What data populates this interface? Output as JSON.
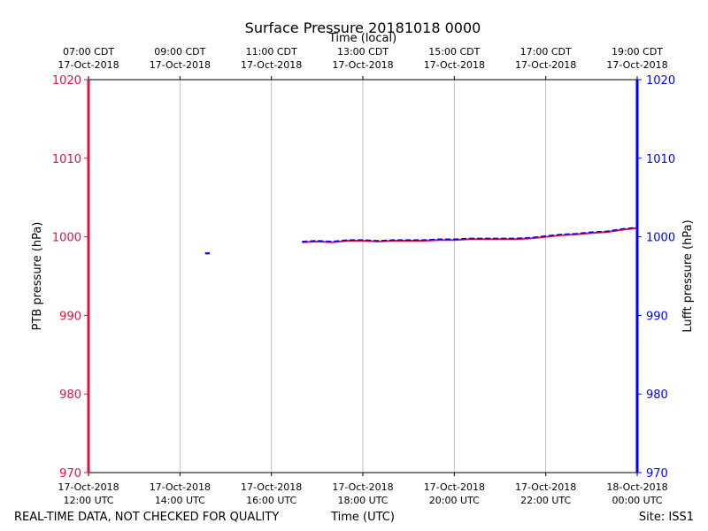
{
  "chart_data": {
    "type": "line",
    "title": "Surface Pressure 20181018 0000",
    "top_xlabel": "Time (local)",
    "bottom_xlabel": "Time (UTC)",
    "ylabel_left": "PTB pressure (hPa)",
    "ylabel_right": "Lufft pressure (hPa)",
    "xlim_utc_hours": [
      12,
      24
    ],
    "ylim": [
      970,
      1020
    ],
    "yticks": [
      970,
      980,
      990,
      1000,
      1010,
      1020
    ],
    "grid_x": true,
    "bottom_ticks": [
      {
        "hour": 12,
        "date": "17-Oct-2018",
        "time": "12:00 UTC"
      },
      {
        "hour": 14,
        "date": "17-Oct-2018",
        "time": "14:00 UTC"
      },
      {
        "hour": 16,
        "date": "17-Oct-2018",
        "time": "16:00 UTC"
      },
      {
        "hour": 18,
        "date": "17-Oct-2018",
        "time": "18:00 UTC"
      },
      {
        "hour": 20,
        "date": "17-Oct-2018",
        "time": "20:00 UTC"
      },
      {
        "hour": 22,
        "date": "17-Oct-2018",
        "time": "22:00 UTC"
      },
      {
        "hour": 24,
        "date": "18-Oct-2018",
        "time": "00:00 UTC"
      }
    ],
    "top_ticks": [
      {
        "hour": 12,
        "time": "07:00 CDT",
        "date": "17-Oct-2018"
      },
      {
        "hour": 14,
        "time": "09:00 CDT",
        "date": "17-Oct-2018"
      },
      {
        "hour": 16,
        "time": "11:00 CDT",
        "date": "17-Oct-2018"
      },
      {
        "hour": 18,
        "time": "13:00 CDT",
        "date": "17-Oct-2018"
      },
      {
        "hour": 20,
        "time": "15:00 CDT",
        "date": "17-Oct-2018"
      },
      {
        "hour": 22,
        "time": "17:00 CDT",
        "date": "17-Oct-2018"
      },
      {
        "hour": 24,
        "time": "19:00 CDT",
        "date": "17-Oct-2018"
      }
    ],
    "series": [
      {
        "name": "PTB pressure",
        "color": "#dc143c",
        "x": [
          16.67,
          17.0,
          17.33,
          17.67,
          18.0,
          18.33,
          18.67,
          19.0,
          19.33,
          19.67,
          20.0,
          20.33,
          20.67,
          21.0,
          21.33,
          21.67,
          22.0,
          22.33,
          22.67,
          23.0,
          23.33,
          23.67,
          24.0
        ],
        "values": [
          999.3,
          999.4,
          999.3,
          999.5,
          999.5,
          999.4,
          999.5,
          999.5,
          999.5,
          999.6,
          999.6,
          999.7,
          999.7,
          999.7,
          999.7,
          999.8,
          1000.0,
          1000.2,
          1000.3,
          1000.5,
          1000.6,
          1000.9,
          1001.1
        ]
      },
      {
        "name": "Lufft pressure",
        "color": "#0000ff",
        "x": [
          16.67,
          17.0,
          17.33,
          17.67,
          18.0,
          18.33,
          18.67,
          19.0,
          19.33,
          19.67,
          20.0,
          20.33,
          20.67,
          21.0,
          21.33,
          21.67,
          22.0,
          22.33,
          22.67,
          23.0,
          23.33,
          23.67,
          24.0
        ],
        "values": [
          999.4,
          999.5,
          999.4,
          999.6,
          999.6,
          999.5,
          999.6,
          999.6,
          999.6,
          999.7,
          999.7,
          999.8,
          999.8,
          999.8,
          999.8,
          999.9,
          1000.1,
          1000.3,
          1000.4,
          1000.6,
          1000.7,
          1001.0,
          1001.2
        ]
      }
    ],
    "outlier": {
      "series": "Lufft pressure",
      "x_start": 14.55,
      "x_end": 14.65,
      "value": 997.9
    }
  },
  "footer": {
    "left": "REAL-TIME DATA, NOT CHECKED FOR QUALITY",
    "right": "Site: ISS1"
  }
}
